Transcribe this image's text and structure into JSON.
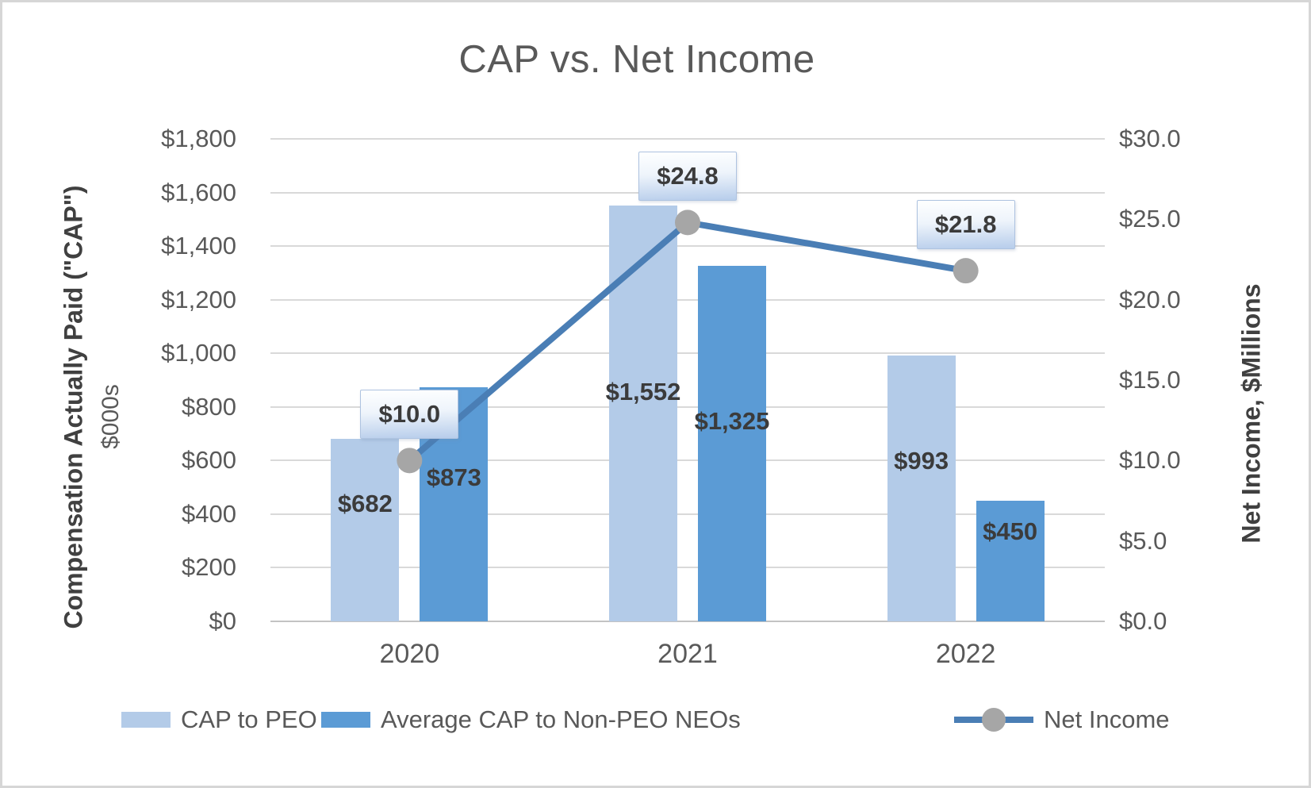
{
  "chart_data": {
    "type": "combo-bar-line",
    "title": "CAP vs. Net Income",
    "categories": [
      "2020",
      "2021",
      "2022"
    ],
    "series": [
      {
        "name": "CAP to PEO",
        "type": "bar",
        "axis": "left",
        "values": [
          682,
          1552,
          993
        ],
        "data_labels": [
          "$682",
          "$1,552",
          "$993"
        ],
        "color": "#B3CBE8"
      },
      {
        "name": "Average CAP to Non-PEO NEOs",
        "type": "bar",
        "axis": "left",
        "values": [
          873,
          1325,
          450
        ],
        "data_labels": [
          "$873",
          "$1,325",
          "$450"
        ],
        "color": "#5B9BD5"
      },
      {
        "name": "Net Income",
        "type": "line",
        "axis": "right",
        "values": [
          10.0,
          24.8,
          21.8
        ],
        "data_labels": [
          "$10.0",
          "$24.8",
          "$21.8"
        ],
        "color": "#4A7EB5",
        "marker_color": "#A6A6A6"
      }
    ],
    "left_axis": {
      "title": "Compensation Actually Paid (\"CAP\")",
      "units_label": "$000s",
      "min": 0,
      "max": 1800,
      "step": 200,
      "tick_labels": [
        "$0",
        "$200",
        "$400",
        "$600",
        "$800",
        "$1,000",
        "$1,200",
        "$1,400",
        "$1,600",
        "$1,800"
      ]
    },
    "right_axis": {
      "title": "Net Income, $Millions",
      "min": 0,
      "max": 30,
      "step": 5,
      "tick_labels": [
        "$0.0",
        "$5.0",
        "$10.0",
        "$15.0",
        "$20.0",
        "$25.0",
        "$30.0"
      ]
    },
    "grid": true,
    "legend_position": "bottom"
  },
  "colors": {
    "bar_light": "#B3CBE8",
    "bar_dark": "#5B9BD5",
    "line": "#4A7EB5",
    "marker": "#A6A6A6",
    "gridline": "#D9D9D9",
    "axis_text": "#595959",
    "data_label_text": "#3B3B3B",
    "frame_border": "#D6D6D6"
  }
}
